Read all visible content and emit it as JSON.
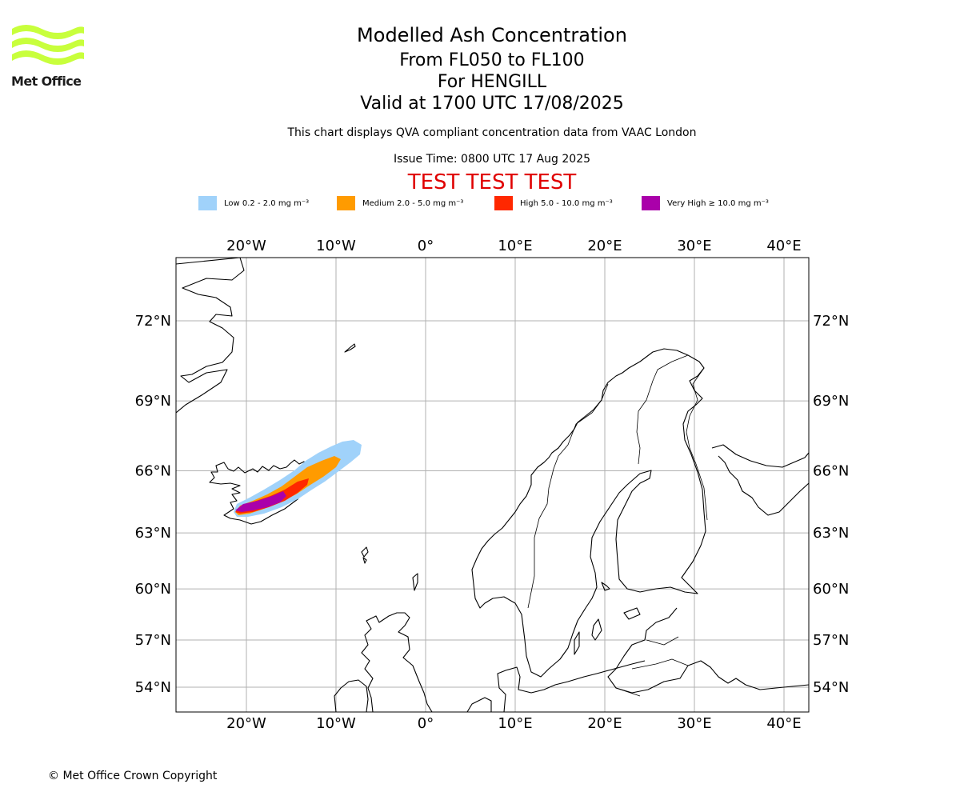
{
  "header": {
    "title": "Modelled Ash Concentration",
    "levels": "From FL050 to FL100",
    "for": "For HENGILL",
    "valid": "Valid at 1700 UTC 17/08/2025",
    "compliance": "This chart displays QVA compliant concentration data from VAAC London",
    "issue_time": "Issue Time: 0800 UTC 17 Aug 2025",
    "test_banner": "TEST TEST TEST"
  },
  "logo": {
    "text": "Met Office",
    "color": "#c8ff3c"
  },
  "legend": [
    {
      "label": "Low 0.2 - 2.0 mg m⁻³",
      "color": "#a0d2fa"
    },
    {
      "label": "Medium 2.0 - 5.0 mg m⁻³",
      "color": "#ff9b00"
    },
    {
      "label": "High 5.0 - 10.0 mg m⁻³",
      "color": "#ff2800"
    },
    {
      "label": "Very High ≥ 10.0 mg m⁻³",
      "color": "#aa00aa"
    }
  ],
  "map": {
    "lon_range": [
      -28,
      43
    ],
    "lat_range": [
      53,
      74
    ],
    "lon_ticks": [
      -20,
      -10,
      0,
      10,
      20,
      30,
      40
    ],
    "lon_labels": [
      "20°W",
      "10°W",
      "0°",
      "10°E",
      "20°E",
      "30°E",
      "40°E"
    ],
    "lat_ticks": [
      72,
      69,
      66,
      63,
      60,
      57,
      54
    ],
    "lat_labels": [
      "72°N",
      "69°N",
      "66°N",
      "63°N",
      "60°N",
      "57°N",
      "54°N"
    ],
    "grid": true
  },
  "footer": {
    "copyright": "© Met Office Crown Copyright"
  }
}
